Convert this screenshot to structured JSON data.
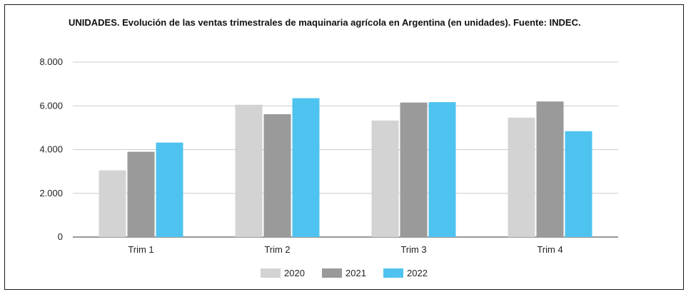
{
  "chart_data": {
    "type": "bar",
    "title": "UNIDADES. Evolución de las ventas trimestrales de maquinaria agrícola en Argentina (en unidades). Fuente: INDEC.",
    "xlabel": "",
    "ylabel": "",
    "categories": [
      "Trim 1",
      "Trim 2",
      "Trim 3",
      "Trim 4"
    ],
    "series": [
      {
        "name": "2020",
        "values": [
          3050,
          6050,
          5330,
          5460
        ],
        "color": "#d3d3d3"
      },
      {
        "name": "2021",
        "values": [
          3900,
          5620,
          6150,
          6200
        ],
        "color": "#9a9a9a"
      },
      {
        "name": "2022",
        "values": [
          4320,
          6350,
          6170,
          4840
        ],
        "color": "#4fc3f0"
      }
    ],
    "ylim": [
      0,
      8000
    ],
    "yticks": [
      0,
      2000,
      4000,
      6000,
      8000
    ],
    "ytick_labels": [
      "0",
      "2.000",
      "4.000",
      "6.000",
      "8.000"
    ],
    "grid": true,
    "legend_position": "bottom"
  }
}
